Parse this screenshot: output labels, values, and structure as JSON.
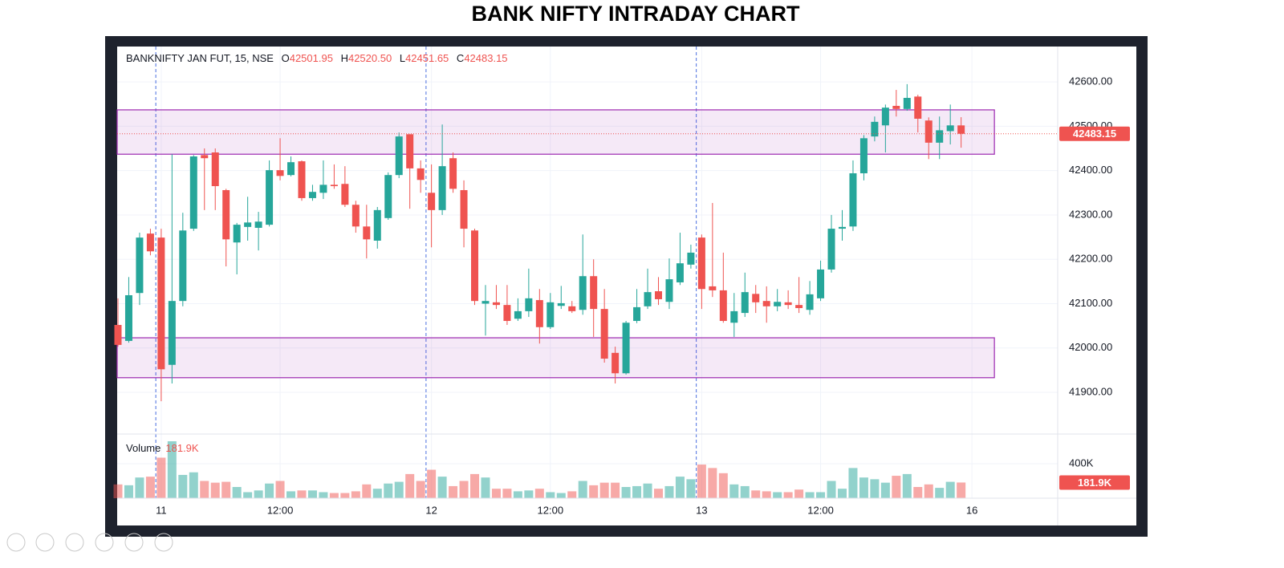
{
  "header": {
    "title": "BANK NIFTY INTRADAY CHART"
  },
  "chart_data": {
    "type": "candlestick",
    "legend": {
      "symbol": "BANKNIFTY JAN FUT, 15, NSE",
      "open": {
        "key": "O",
        "value": "42501.95"
      },
      "high": {
        "key": "H",
        "value": "42520.50"
      },
      "low": {
        "key": "L",
        "value": "42451.65"
      },
      "close": {
        "key": "C",
        "value": "42483.15"
      }
    },
    "up_color": "#26a69a",
    "down_color": "#ef5350",
    "categories": [
      null,
      null,
      null,
      null,
      "11",
      null,
      null,
      null,
      null,
      null,
      null,
      null,
      null,
      null,
      null,
      "12:00",
      null,
      null,
      null,
      null,
      null,
      null,
      null,
      null,
      null,
      null,
      null,
      null,
      null,
      "12",
      null,
      null,
      null,
      null,
      null,
      null,
      null,
      null,
      null,
      null,
      "12:00",
      null,
      null,
      null,
      null,
      null,
      null,
      null,
      null,
      null,
      null,
      null,
      null,
      null,
      "13",
      null,
      null,
      null,
      null,
      null,
      null,
      null,
      null,
      null,
      null,
      "12:00",
      null,
      null,
      null,
      null,
      null,
      null,
      null,
      null,
      null,
      null,
      null,
      null,
      null
    ],
    "next_session_label": "16",
    "open": [
      42052,
      42016,
      42124,
      42258,
      42249,
      41962,
      42106,
      42269,
      42435,
      42441,
      42356,
      42238,
      42273,
      42271,
      42278,
      42401,
      42390,
      42421,
      42338,
      42350,
      42368,
      42370,
      42323,
      42274,
      42242,
      42293,
      42390,
      42482,
      42405,
      42350,
      42311,
      42428,
      42356,
      42265,
      42100,
      42103,
      42097,
      42066,
      42083,
      42108,
      42047,
      42095,
      42094,
      42086,
      42162,
      42088,
      41989,
      41943,
      42061,
      42094,
      42128,
      42104,
      42148,
      42188,
      42249,
      42139,
      42130,
      42057,
      42079,
      42122,
      42106,
      42094,
      42103,
      42097,
      42086,
      42112,
      42177,
      42269,
      42274,
      42394,
      42477,
      42502,
      42546,
      42539,
      42567,
      42513,
      42463,
      42489,
      42501.95
    ],
    "high": [
      42112,
      42160,
      42260,
      42269,
      42269,
      42437,
      42305,
      42435,
      42450,
      42450,
      42359,
      42282,
      42341,
      42307,
      42423,
      42473,
      42432,
      42423,
      42368,
      42423,
      42414,
      42410,
      42332,
      42323,
      42318,
      42396,
      42486,
      42482,
      42423,
      42414,
      42504,
      42441,
      42378,
      42269,
      42142,
      42142,
      42142,
      42112,
      42179,
      42133,
      42124,
      42140,
      42106,
      42256,
      42200,
      42133,
      42003,
      42061,
      42133,
      42179,
      42160,
      42202,
      42260,
      42233,
      42256,
      42327,
      42215,
      42124,
      42170,
      42142,
      42139,
      42133,
      42130,
      42160,
      42151,
      42197,
      42300,
      42311,
      42423,
      42480,
      42522,
      42549,
      42582,
      42595,
      42571,
      42520,
      42522,
      42549,
      42520.5
    ],
    "low": [
      42003,
      42012,
      42097,
      42209,
      41880,
      41920,
      42094,
      42264,
      42311,
      42311,
      42184,
      42166,
      42242,
      42220,
      42274,
      42378,
      42387,
      42332,
      42332,
      42336,
      42359,
      42318,
      42260,
      42202,
      42224,
      42289,
      42383,
      42314,
      42350,
      42227,
      42300,
      42350,
      42227,
      42097,
      42028,
      42088,
      42052,
      42061,
      42070,
      42010,
      42043,
      42088,
      42079,
      42075,
      42025,
      41967,
      41920,
      41940,
      42056,
      42088,
      42097,
      42088,
      42142,
      42179,
      42088,
      42115,
      42057,
      42025,
      42070,
      42079,
      42057,
      42083,
      42088,
      42079,
      42075,
      42106,
      42170,
      42242,
      42264,
      42378,
      42466,
      42441,
      42522,
      42535,
      42486,
      42426,
      42426,
      42459,
      42451.65
    ],
    "close": [
      42007,
      42119,
      42249,
      42218,
      41952,
      42106,
      42265,
      42432,
      42428,
      42365,
      42245,
      42278,
      42283,
      42285,
      42401,
      42388,
      42419,
      42338,
      42352,
      42368,
      42365,
      42323,
      42274,
      42245,
      42311,
      42390,
      42477,
      42405,
      42379,
      42311,
      42410,
      42359,
      42269,
      42106,
      42106,
      42097,
      42061,
      42083,
      42112,
      42047,
      42103,
      42101,
      42083,
      42162,
      42088,
      41976,
      41943,
      42057,
      42092,
      42126,
      42110,
      42155,
      42191,
      42215,
      42133,
      42130,
      42061,
      42083,
      42126,
      42103,
      42094,
      42104,
      42097,
      42090,
      42121,
      42177,
      42269,
      42273,
      42394,
      42473,
      42510,
      42542,
      42539,
      42564,
      42517,
      42463,
      42491,
      42502,
      42483.15
    ],
    "ylim": [
      41806,
      42678
    ],
    "yticks": [
      {
        "value": 41900,
        "label": "41900.00"
      },
      {
        "value": 42000,
        "label": "42000.00"
      },
      {
        "value": 42100,
        "label": "42100.00"
      },
      {
        "value": 42200,
        "label": "42200.00"
      },
      {
        "value": 42300,
        "label": "42300.00"
      },
      {
        "value": 42400,
        "label": "42400.00"
      },
      {
        "value": 42500,
        "label": "42500.00"
      },
      {
        "value": 42600,
        "label": "42600.00"
      }
    ],
    "zones": [
      {
        "from": 42437,
        "to": 42537
      },
      {
        "from": 41933,
        "to": 42023
      }
    ],
    "zone_color": "#9c27b0",
    "volume": {
      "label": "Volume",
      "last_label": "181.9K",
      "values": [
        160,
        150,
        240,
        250,
        470,
        660,
        270,
        300,
        200,
        180,
        190,
        130,
        70,
        90,
        170,
        200,
        80,
        90,
        90,
        70,
        60,
        60,
        80,
        160,
        110,
        170,
        190,
        280,
        200,
        330,
        250,
        140,
        200,
        280,
        240,
        110,
        110,
        80,
        90,
        110,
        70,
        60,
        80,
        200,
        150,
        180,
        180,
        130,
        140,
        170,
        110,
        140,
        250,
        220,
        390,
        350,
        290,
        160,
        140,
        90,
        80,
        70,
        70,
        100,
        70,
        70,
        200,
        110,
        350,
        240,
        220,
        180,
        260,
        280,
        130,
        160,
        120,
        190,
        181.9
      ],
      "ylim": [
        0,
        744
      ],
      "yticks": [
        {
          "value": 400,
          "label": "400K"
        }
      ]
    },
    "grid": true
  }
}
